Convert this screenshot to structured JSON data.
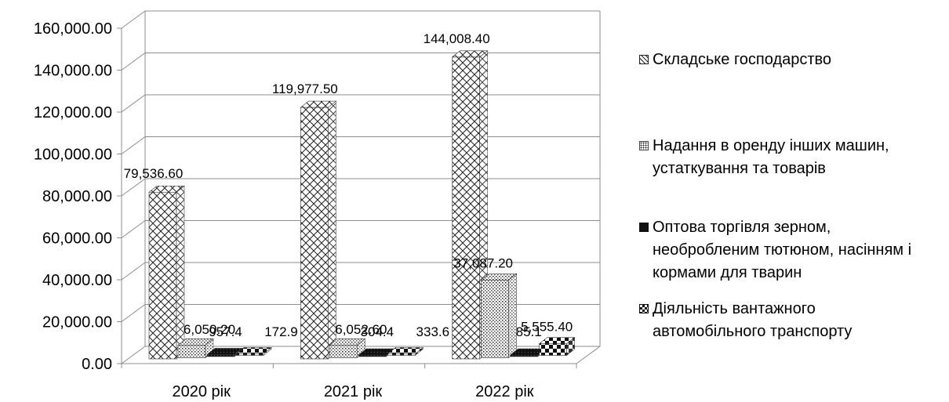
{
  "chart_data": {
    "type": "bar",
    "categories": [
      "2020 рік",
      "2021 рік",
      "2022 рік"
    ],
    "ylim": [
      0,
      160000
    ],
    "yticks": [
      0,
      20000,
      40000,
      60000,
      80000,
      100000,
      120000,
      140000,
      160000
    ],
    "ytick_labels": [
      "0.00",
      "20,000.00",
      "40,000.00",
      "60,000.00",
      "80,000.00",
      "100,000.00",
      "120,000.00",
      "140,000.00",
      "160,000.00"
    ],
    "grid": true,
    "legend_position": "right",
    "series": [
      {
        "name": "Складське господарство",
        "pattern": "crosshatch",
        "values": [
          79536.6,
          119977.5,
          144008.4
        ],
        "labels": [
          "79,536.60",
          "119,977.50",
          "144,008.40"
        ]
      },
      {
        "name": "Надання в оренду інших машин, устаткування та товарів",
        "pattern": "dotted",
        "values": [
          6050.2,
          6052.6,
          37087.2
        ],
        "labels": [
          "6,050.20",
          "6,052.60",
          "37,087.20"
        ]
      },
      {
        "name": "Оптова торгівля зерном, необробленим тютюном, насінням і кормами для тварин",
        "pattern": "dark",
        "values": [
          957.4,
          304.4,
          85.1
        ],
        "labels": [
          "957.4",
          "304.4",
          "85.1"
        ]
      },
      {
        "name": "Діяльність вантажного автомобільного транспорту",
        "pattern": "checker",
        "values": [
          172.9,
          333.6,
          5555.4
        ],
        "labels": [
          "172.9",
          "333.6",
          "5,555.40"
        ]
      }
    ]
  }
}
